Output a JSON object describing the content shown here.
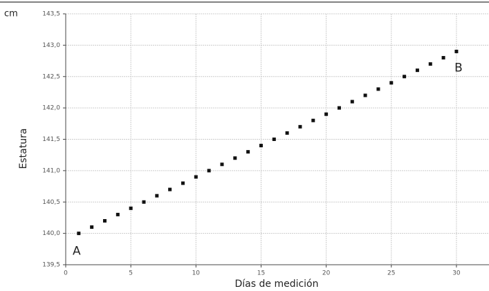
{
  "chart_data": {
    "type": "scatter",
    "y_unit_label": "cm",
    "ylabel": "Estatura",
    "xlabel": "Días de medición",
    "annotations": [
      "A",
      "B"
    ],
    "x": [
      1,
      2,
      3,
      4,
      5,
      6,
      7,
      8,
      9,
      10,
      11,
      12,
      13,
      14,
      15,
      16,
      17,
      18,
      19,
      20,
      21,
      22,
      23,
      24,
      25,
      26,
      27,
      28,
      29,
      30
    ],
    "series": [
      {
        "color": "#111111",
        "values": [
          140.0,
          140.1,
          140.2,
          140.3,
          140.4,
          140.5,
          140.6,
          140.7,
          140.8,
          140.9,
          141.0,
          141.1,
          141.2,
          141.3,
          141.4,
          141.5,
          141.6,
          141.7,
          141.8,
          141.9,
          142.0,
          142.1,
          142.2,
          142.3,
          142.4,
          142.5,
          142.6,
          142.7,
          142.8,
          142.9
        ]
      }
    ],
    "xlim": [
      0,
      32.5
    ],
    "xticks": [
      0,
      5,
      10,
      15,
      20,
      25,
      30
    ],
    "ylim": [
      139.5,
      143.5
    ],
    "yticks": [
      {
        "value": 139.5,
        "label": "139,5"
      },
      {
        "value": 140.0,
        "label": "140,0"
      },
      {
        "value": 140.5,
        "label": "140,5"
      },
      {
        "value": 141.0,
        "label": "141,0"
      },
      {
        "value": 141.5,
        "label": "141,5"
      },
      {
        "value": 142.0,
        "label": "142,0"
      },
      {
        "value": 142.5,
        "label": "142,5"
      },
      {
        "value": 143.0,
        "label": "143,0"
      },
      {
        "value": 143.5,
        "label": "143,5"
      }
    ],
    "grid": true,
    "grid_color": "#cccccc"
  }
}
